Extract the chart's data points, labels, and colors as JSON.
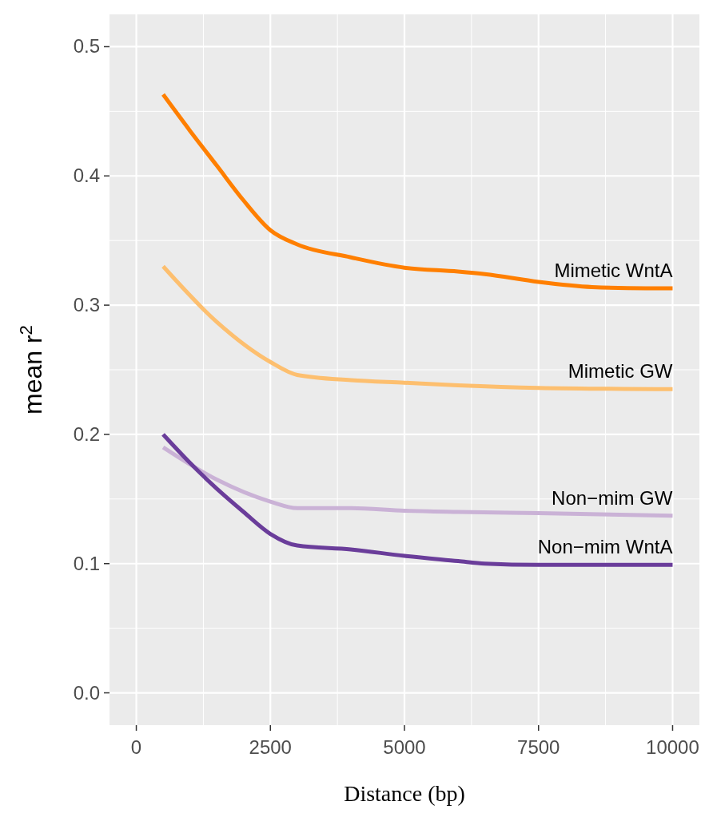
{
  "chart_data": {
    "type": "line",
    "xlabel": "Distance (bp)",
    "ylabel": "mean r$^{2}$",
    "xlim": [
      -500,
      10500
    ],
    "xticks": [
      0,
      2500,
      5000,
      7500,
      10000
    ],
    "ylim": [
      -0.025,
      0.525
    ],
    "yticks": [
      {
        "value": 0,
        "label": "0.0"
      },
      0.1,
      0.2,
      0.3,
      0.4,
      0.5
    ],
    "grid": true,
    "marker": "none",
    "line_style": "solid",
    "series": [
      {
        "name": "Mimetic WntA",
        "color": "#ff7f00",
        "x": [
          500,
          1000,
          1500,
          2000,
          2500,
          3000,
          4000,
          5000,
          6000,
          6500,
          7500,
          8500,
          9500,
          10000
        ],
        "values": [
          0.463,
          0.435,
          0.408,
          0.381,
          0.358,
          0.347,
          0.337,
          0.329,
          0.326,
          0.324,
          0.318,
          0.314,
          0.313,
          0.313
        ]
      },
      {
        "name": "Mimetic GW",
        "color": "#fdbf6f",
        "x": [
          500,
          1500,
          2500,
          3000,
          4000,
          5000,
          6000,
          7500,
          10000
        ],
        "values": [
          0.33,
          0.287,
          0.256,
          0.246,
          0.242,
          0.24,
          0.238,
          0.236,
          0.235
        ]
      },
      {
        "name": "Non−mim GW",
        "color": "#cab2d6",
        "x": [
          500,
          1500,
          2500,
          3000,
          4000,
          5000,
          6000,
          7500,
          10000
        ],
        "values": [
          0.19,
          0.165,
          0.148,
          0.143,
          0.143,
          0.141,
          0.14,
          0.139,
          0.137
        ]
      },
      {
        "name": "Non−mim WntA",
        "color": "#6a3d9a",
        "x": [
          500,
          1000,
          1500,
          2000,
          2500,
          3000,
          4000,
          5000,
          6000,
          6500,
          7500,
          10000
        ],
        "values": [
          0.2,
          0.178,
          0.158,
          0.14,
          0.123,
          0.114,
          0.111,
          0.106,
          0.102,
          0.1,
          0.099,
          0.099
        ]
      }
    ]
  }
}
